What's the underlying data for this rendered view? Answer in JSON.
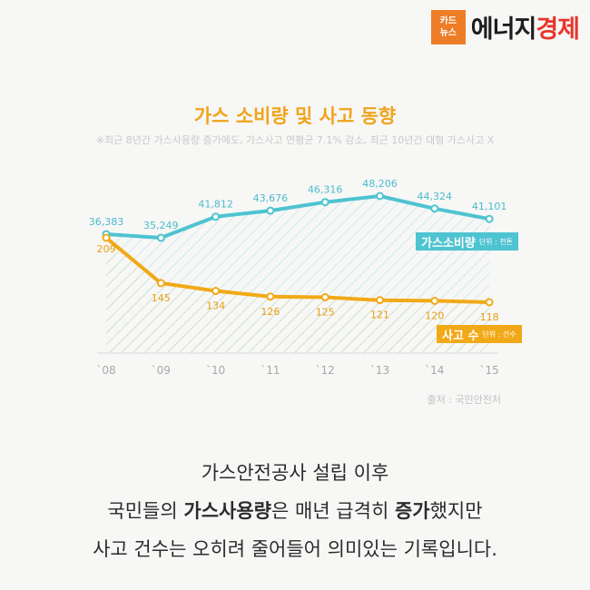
{
  "logo": {
    "box_line1": "카드",
    "box_line2": "뉴스",
    "text_part1": "에너지",
    "text_part2": "경제"
  },
  "chart_data": {
    "type": "line",
    "title": "가스 소비량 및 사고 동향",
    "subtitle": "※최근 8년간 가스사용량 증가에도, 가스사고 연평균 7.1% 감소, 최근 10년간 대형 가스사고 X",
    "categories": [
      "`08",
      "`09",
      "`10",
      "`11",
      "`12",
      "`13",
      "`14",
      "`15"
    ],
    "series": [
      {
        "name": "가스소비량",
        "unit": "단위 : 천톤",
        "values": [
          36383,
          35249,
          41812,
          43676,
          46316,
          48206,
          44324,
          41101
        ],
        "labels": [
          "36,383",
          "35,249",
          "41,812",
          "43,676",
          "46,316",
          "48,206",
          "44,324",
          "41,101"
        ],
        "color": "#4ec3d1"
      },
      {
        "name": "사고 수",
        "unit": "단위 : 건수",
        "values": [
          209,
          145,
          134,
          126,
          125,
          121,
          120,
          118
        ],
        "labels": [
          "209",
          "145",
          "134",
          "126",
          "125",
          "121",
          "120",
          "118"
        ],
        "color": "#f2a917"
      }
    ],
    "source": "출처 : 국민안전처",
    "grid": false,
    "legend": "right"
  },
  "caption": {
    "line1": "가스안전공사 설립 이후",
    "line2_pre": "국민들의 ",
    "line2_b1": "가스사용량",
    "line2_mid": "은 매년 급격히 ",
    "line2_b2": "증가",
    "line2_post": "했지만",
    "line3": "사고 건수는 오히려 줄어들어 의미있는 기록입니다."
  }
}
